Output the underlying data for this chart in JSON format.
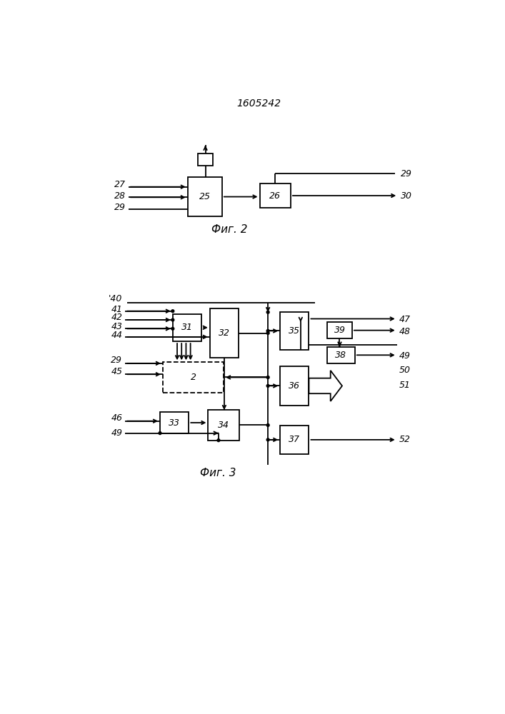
{
  "title": "1605242",
  "fig2_caption": "Фиг. 2",
  "fig3_caption": "Фиг. 3",
  "bg_color": "#ffffff",
  "line_color": "#000000",
  "box_color": "#ffffff",
  "box_edge": "#000000",
  "font_size_label": 9,
  "font_size_title": 10,
  "font_size_box": 9,
  "font_size_caption": 11
}
